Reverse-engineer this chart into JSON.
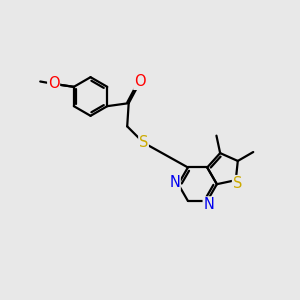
{
  "bg_color": "#e8e8e8",
  "bond_color": "#000000",
  "bond_width": 1.6,
  "atom_colors": {
    "O": "#ff0000",
    "N": "#0000ee",
    "S": "#ccaa00",
    "C": "#000000"
  },
  "font_size_atom": 10.5,
  "font_size_methyl": 9.5
}
